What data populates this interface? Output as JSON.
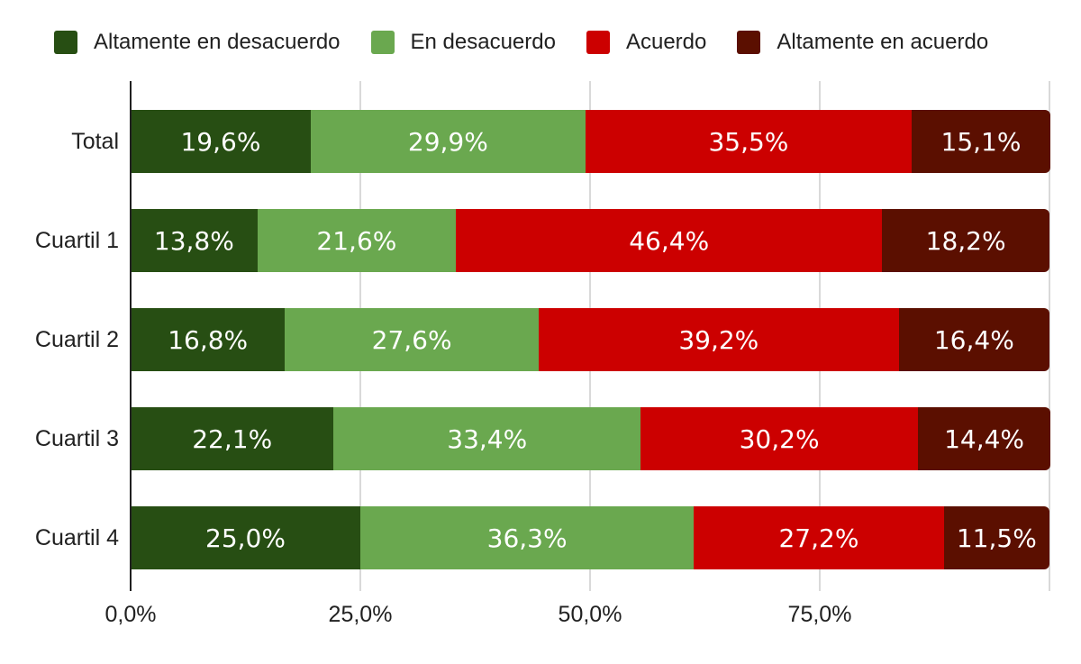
{
  "chart_data": {
    "type": "bar",
    "stacked": true,
    "orientation": "horizontal",
    "title": "",
    "xlabel": "",
    "ylabel": "",
    "xlim": [
      0,
      100
    ],
    "grid": "vertical",
    "legend_position": "top",
    "categories": [
      "Total",
      "Cuartil 1",
      "Cuartil 2",
      "Cuartil 3",
      "Cuartil 4"
    ],
    "series": [
      {
        "name": "Altamente en desacuerdo",
        "color": "#274e13",
        "values": [
          19.6,
          13.8,
          16.8,
          22.1,
          25.0
        ],
        "value_labels": [
          "19,6%",
          "13,8%",
          "16,8%",
          "22,1%",
          "25,0%"
        ]
      },
      {
        "name": "En desacuerdo",
        "color": "#6aa84f",
        "values": [
          29.9,
          21.6,
          27.6,
          33.4,
          36.3
        ],
        "value_labels": [
          "29,9%",
          "21,6%",
          "27,6%",
          "33,4%",
          "36,3%"
        ]
      },
      {
        "name": "Acuerdo",
        "color": "#cc0000",
        "values": [
          35.5,
          46.4,
          39.2,
          30.2,
          27.2
        ],
        "value_labels": [
          "35,5%",
          "46,4%",
          "39,2%",
          "30,2%",
          "27,2%"
        ]
      },
      {
        "name": "Altamente en acuerdo",
        "color": "#5b0f00",
        "values": [
          15.1,
          18.2,
          16.4,
          14.4,
          11.5
        ],
        "value_labels": [
          "15,1%",
          "18,2%",
          "16,4%",
          "14,4%",
          "11,5%"
        ]
      }
    ],
    "x_ticks": [
      "0,0%",
      "25,0%",
      "50,0%",
      "75,0%"
    ],
    "x_tick_values": [
      0,
      25,
      50,
      75
    ],
    "colors": {
      "grid": "#d9d9d9",
      "axis": "#212121",
      "text": "#212121",
      "bar_label": "#ffffff",
      "background": "#ffffff"
    }
  }
}
